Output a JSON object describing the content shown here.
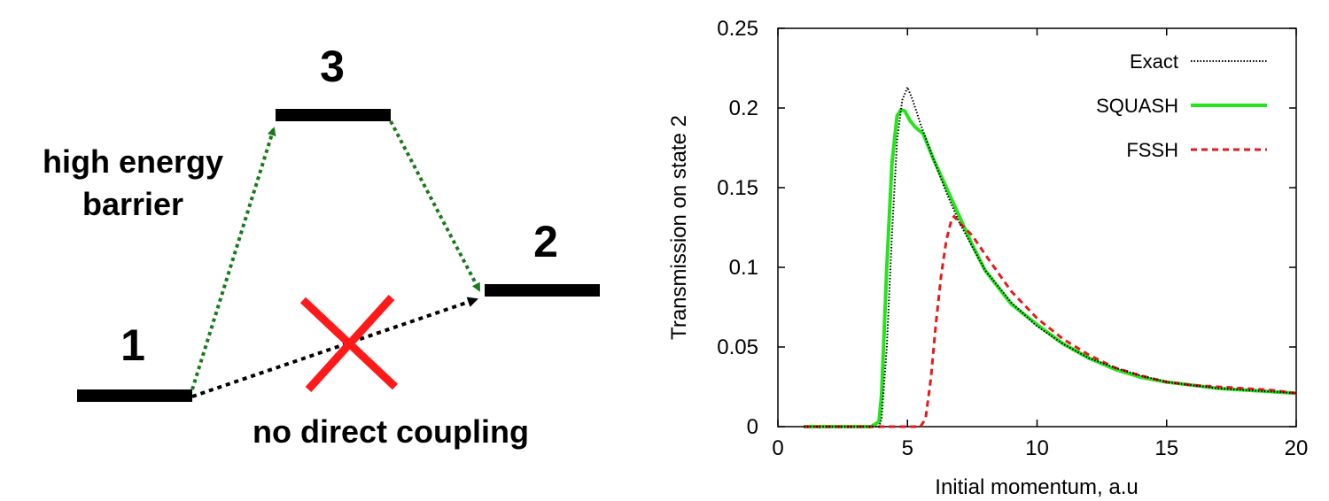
{
  "diagram": {
    "levels": [
      {
        "label": "1"
      },
      {
        "label": "3"
      },
      {
        "label": "2"
      }
    ],
    "annotations": {
      "barrier_line1": "high energy",
      "barrier_line2": "barrier",
      "coupling": "no direct coupling"
    },
    "colors": {
      "level": "#000000",
      "barrier_arrow": "#1a7a1a",
      "direct_arrow": "#000000",
      "cross": "#ff1a1a"
    }
  },
  "chart_data": {
    "type": "line",
    "title": "",
    "xlabel": "Initial momentum, a.u",
    "ylabel": "Transmission on state 2",
    "xlim": [
      0,
      20
    ],
    "ylim": [
      0,
      0.25
    ],
    "xticks": [
      0,
      5,
      10,
      15,
      20
    ],
    "yticks": [
      0,
      0.05,
      0.1,
      0.15,
      0.2,
      0.25
    ],
    "ytick_labels": [
      "0",
      "0.05",
      "0.1",
      "0.15",
      "0.2",
      "0.25"
    ],
    "grid": false,
    "legend_position": "top-right",
    "series": [
      {
        "name": "Exact",
        "color": "#000000",
        "style": "dotted",
        "x": [
          1,
          3.5,
          3.9,
          4.0,
          4.2,
          4.4,
          4.6,
          4.8,
          5.0,
          5.2,
          5.5,
          6.0,
          6.5,
          7.0,
          7.5,
          8.0,
          9.0,
          10.0,
          11.0,
          12.0,
          13.0,
          14.0,
          15.0,
          16.0,
          17.0,
          18.0,
          19.0,
          20.0
        ],
        "y": [
          0,
          0,
          0,
          0.005,
          0.05,
          0.12,
          0.18,
          0.205,
          0.213,
          0.205,
          0.19,
          0.168,
          0.147,
          0.128,
          0.113,
          0.098,
          0.078,
          0.063,
          0.052,
          0.043,
          0.037,
          0.032,
          0.028,
          0.026,
          0.024,
          0.023,
          0.022,
          0.021
        ]
      },
      {
        "name": "SQUASH",
        "color": "#22e61a",
        "style": "solid",
        "x": [
          1,
          3.6,
          3.9,
          4.0,
          4.2,
          4.4,
          4.6,
          4.75,
          4.9,
          5.1,
          5.3,
          5.6,
          6.0,
          6.5,
          7.0,
          7.5,
          8.0,
          9.0,
          10.0,
          11.0,
          12.0,
          13.0,
          14.0,
          15.0,
          16.0,
          17.0,
          18.0,
          19.0,
          20.0
        ],
        "y": [
          0,
          0,
          0.003,
          0.02,
          0.1,
          0.165,
          0.195,
          0.199,
          0.198,
          0.192,
          0.188,
          0.184,
          0.168,
          0.15,
          0.132,
          0.114,
          0.098,
          0.077,
          0.064,
          0.052,
          0.043,
          0.036,
          0.031,
          0.028,
          0.026,
          0.024,
          0.023,
          0.022,
          0.021
        ]
      },
      {
        "name": "FSSH",
        "color": "#e61a1a",
        "style": "dashed",
        "x": [
          1,
          5.5,
          5.7,
          5.9,
          6.1,
          6.3,
          6.5,
          6.7,
          6.8,
          7.0,
          7.5,
          8.0,
          9.0,
          10.0,
          11.0,
          12.0,
          13.0,
          14.0,
          15.0,
          16.0,
          17.0,
          18.0,
          19.0,
          20.0
        ],
        "y": [
          0,
          0,
          0.005,
          0.03,
          0.065,
          0.095,
          0.117,
          0.13,
          0.132,
          0.128,
          0.12,
          0.108,
          0.085,
          0.068,
          0.055,
          0.045,
          0.037,
          0.032,
          0.028,
          0.026,
          0.025,
          0.024,
          0.023,
          0.021
        ]
      }
    ]
  }
}
